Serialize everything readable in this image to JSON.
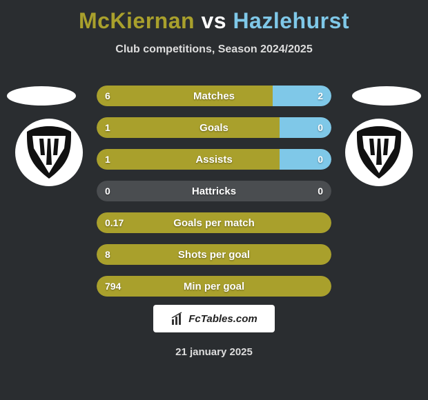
{
  "title": {
    "player1": "McKiernan",
    "vs": "vs",
    "player2": "Hazlehurst",
    "color_p1": "#a9a02c",
    "color_vs": "#ffffff",
    "color_p2": "#7fc8e8"
  },
  "subtitle": "Club competitions, Season 2024/2025",
  "ellipse_color_left": "#ffffff",
  "ellipse_color_right": "#ffffff",
  "crest_bg": "#ffffff",
  "crest_fill": "#111111",
  "p1_color": "#a9a02c",
  "p2_color": "#7fc8e8",
  "track_color": "#4a4d50",
  "stats": [
    {
      "label": "Matches",
      "v1": "6",
      "v2": "2",
      "p1_width_pct": 75,
      "p2_width_pct": 25
    },
    {
      "label": "Goals",
      "v1": "1",
      "v2": "0",
      "p1_width_pct": 78,
      "p2_width_pct": 22
    },
    {
      "label": "Assists",
      "v1": "1",
      "v2": "0",
      "p1_width_pct": 78,
      "p2_width_pct": 22
    },
    {
      "label": "Hattricks",
      "v1": "0",
      "v2": "0",
      "p1_width_pct": 0,
      "p2_width_pct": 0
    },
    {
      "label": "Goals per match",
      "v1": "0.17",
      "v2": "",
      "p1_width_pct": 100,
      "p2_width_pct": 0
    },
    {
      "label": "Shots per goal",
      "v1": "8",
      "v2": "",
      "p1_width_pct": 100,
      "p2_width_pct": 0
    },
    {
      "label": "Min per goal",
      "v1": "794",
      "v2": "",
      "p1_width_pct": 100,
      "p2_width_pct": 0
    }
  ],
  "brand_text": "FcTables.com",
  "date": "21 january 2025"
}
